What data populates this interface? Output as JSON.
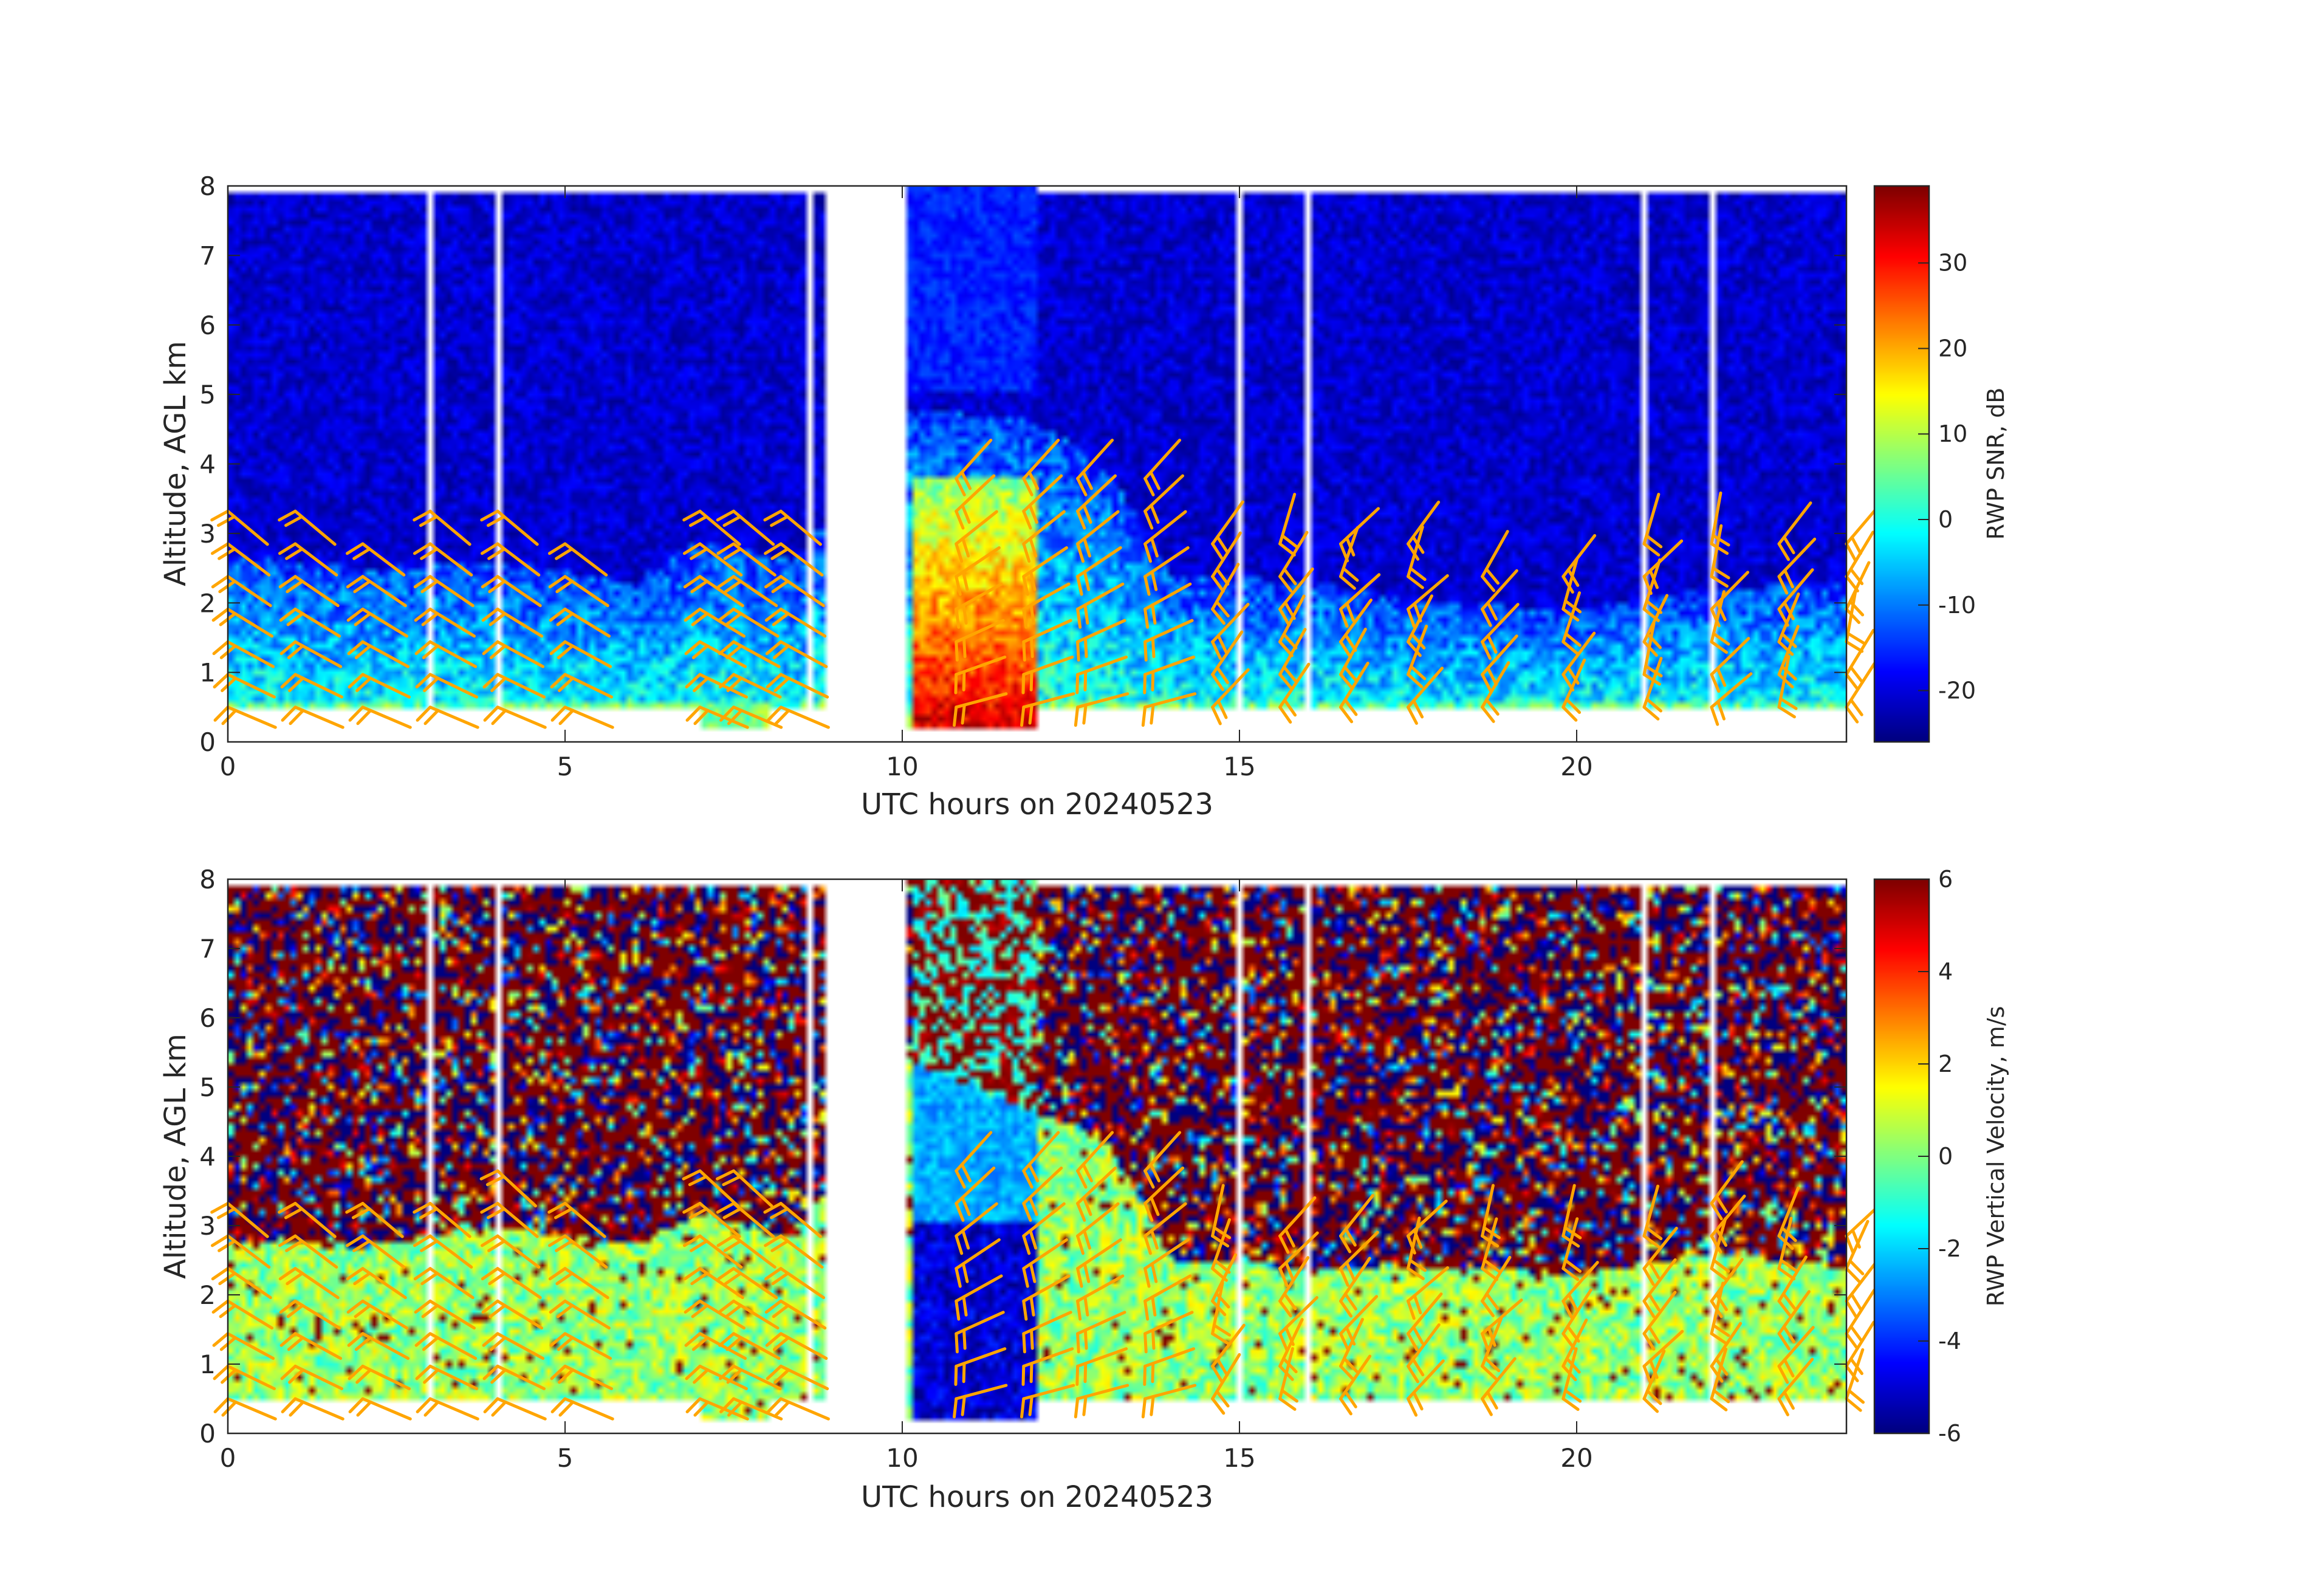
{
  "chart_data": [
    {
      "type": "heatmap",
      "title": "",
      "xlabel": "UTC hours on 20240523",
      "ylabel": "Altitude, AGL km",
      "xlim": [
        0,
        24
      ],
      "ylim": [
        0,
        8
      ],
      "x_ticks": [
        0,
        5,
        10,
        15,
        20
      ],
      "y_ticks": [
        0,
        1,
        2,
        3,
        4,
        5,
        6,
        7,
        8
      ],
      "colorbar": {
        "label": "RWP SNR, dB",
        "min": -26,
        "max": 39,
        "ticks": [
          -20,
          -10,
          0,
          10,
          20,
          30
        ],
        "colormap": "jet"
      },
      "data_gaps_hours": [
        [
          8.55,
          8.65
        ],
        [
          8.9,
          10.05
        ]
      ],
      "boundary_layer_top_km": [
        [
          0,
          2.7
        ],
        [
          2,
          2.5
        ],
        [
          4,
          2.6
        ],
        [
          6,
          2.3
        ],
        [
          7,
          2.9
        ],
        [
          8.4,
          2.6
        ],
        [
          10.1,
          4.8
        ],
        [
          12,
          4.6
        ],
        [
          13,
          4.0
        ],
        [
          14,
          2.4
        ],
        [
          16,
          2.3
        ],
        [
          18,
          2.0
        ],
        [
          20,
          1.9
        ],
        [
          22,
          2.2
        ],
        [
          24,
          2.3
        ]
      ],
      "strong_echo": [
        {
          "x": [
            10.2,
            12.0
          ],
          "y": [
            0.2,
            3.8
          ],
          "snr_db": 35
        }
      ],
      "overlay": "wind barbs (orange)"
    },
    {
      "type": "heatmap",
      "title": "",
      "xlabel": "UTC hours on 20240523",
      "ylabel": "Altitude, AGL km",
      "xlim": [
        0,
        24
      ],
      "ylim": [
        0,
        8
      ],
      "x_ticks": [
        0,
        5,
        10,
        15,
        20
      ],
      "y_ticks": [
        0,
        1,
        2,
        3,
        4,
        5,
        6,
        7,
        8
      ],
      "colorbar": {
        "label": "RWP Vertical Velocity, m/s",
        "min": -6,
        "max": 6,
        "ticks": [
          -6,
          -4,
          -2,
          0,
          2,
          4,
          6
        ],
        "colormap": "jet"
      },
      "data_gaps_hours": [
        [
          8.55,
          8.65
        ],
        [
          8.9,
          10.05
        ]
      ],
      "boundary_layer_top_km": [
        [
          0,
          2.8
        ],
        [
          2,
          2.7
        ],
        [
          4,
          3.0
        ],
        [
          6,
          2.7
        ],
        [
          7,
          3.2
        ],
        [
          8.4,
          2.8
        ],
        [
          10.1,
          5.4
        ],
        [
          12,
          4.6
        ],
        [
          13,
          4.3
        ],
        [
          14,
          2.5
        ],
        [
          16,
          2.4
        ],
        [
          18,
          2.4
        ],
        [
          20,
          2.3
        ],
        [
          22,
          2.6
        ],
        [
          24,
          2.4
        ]
      ],
      "strong_downdraft": [
        {
          "x": [
            10.2,
            12.0
          ],
          "y": [
            0.2,
            3.0
          ],
          "velocity_ms": -6
        }
      ],
      "overlay": "wind barbs (orange)"
    }
  ],
  "colors": {
    "barb": "#ffa500",
    "background": "#ffffff",
    "axis": "#262626"
  }
}
